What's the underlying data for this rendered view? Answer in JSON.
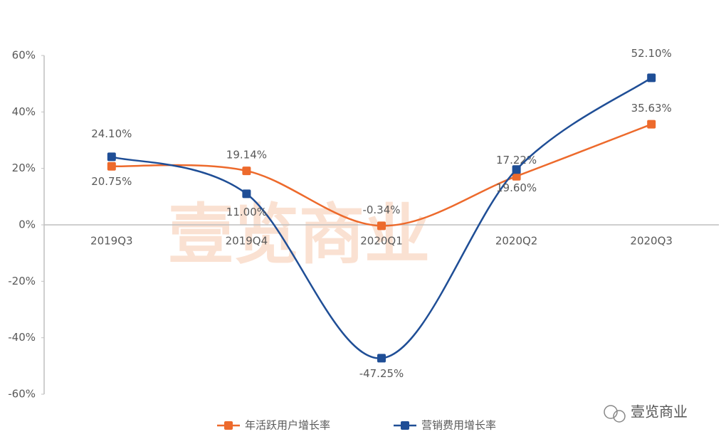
{
  "chart_data": {
    "type": "line",
    "categories": [
      "2019Q3",
      "2019Q4",
      "2020Q1",
      "2020Q2",
      "2020Q3"
    ],
    "series": [
      {
        "name": "年活跃用户增长率",
        "color": "#ed6a2c",
        "values": [
          20.75,
          19.14,
          -0.34,
          17.22,
          35.63
        ],
        "value_labels": [
          "20.75%",
          "19.14%",
          "-0.34%",
          "17.22%",
          "35.63%"
        ]
      },
      {
        "name": "营销费用增长率",
        "color": "#1f4e96",
        "values": [
          24.1,
          11.0,
          -47.25,
          19.6,
          52.1
        ],
        "value_labels": [
          "24.10%",
          "11.00%",
          "-47.25%",
          "19.60%",
          "52.10%"
        ]
      }
    ],
    "ylim": [
      -60,
      60
    ],
    "yticks": [
      {
        "value": -60,
        "label": "-60%"
      },
      {
        "value": -40,
        "label": "-40%"
      },
      {
        "value": -20,
        "label": "-20%"
      },
      {
        "value": 0,
        "label": "0%"
      },
      {
        "value": 20,
        "label": "20%"
      },
      {
        "value": 40,
        "label": "40%"
      },
      {
        "value": 60,
        "label": "60%"
      }
    ],
    "smooth": true,
    "legend": "bottom",
    "watermark": "壹览商业",
    "brand": "壹览商业"
  }
}
